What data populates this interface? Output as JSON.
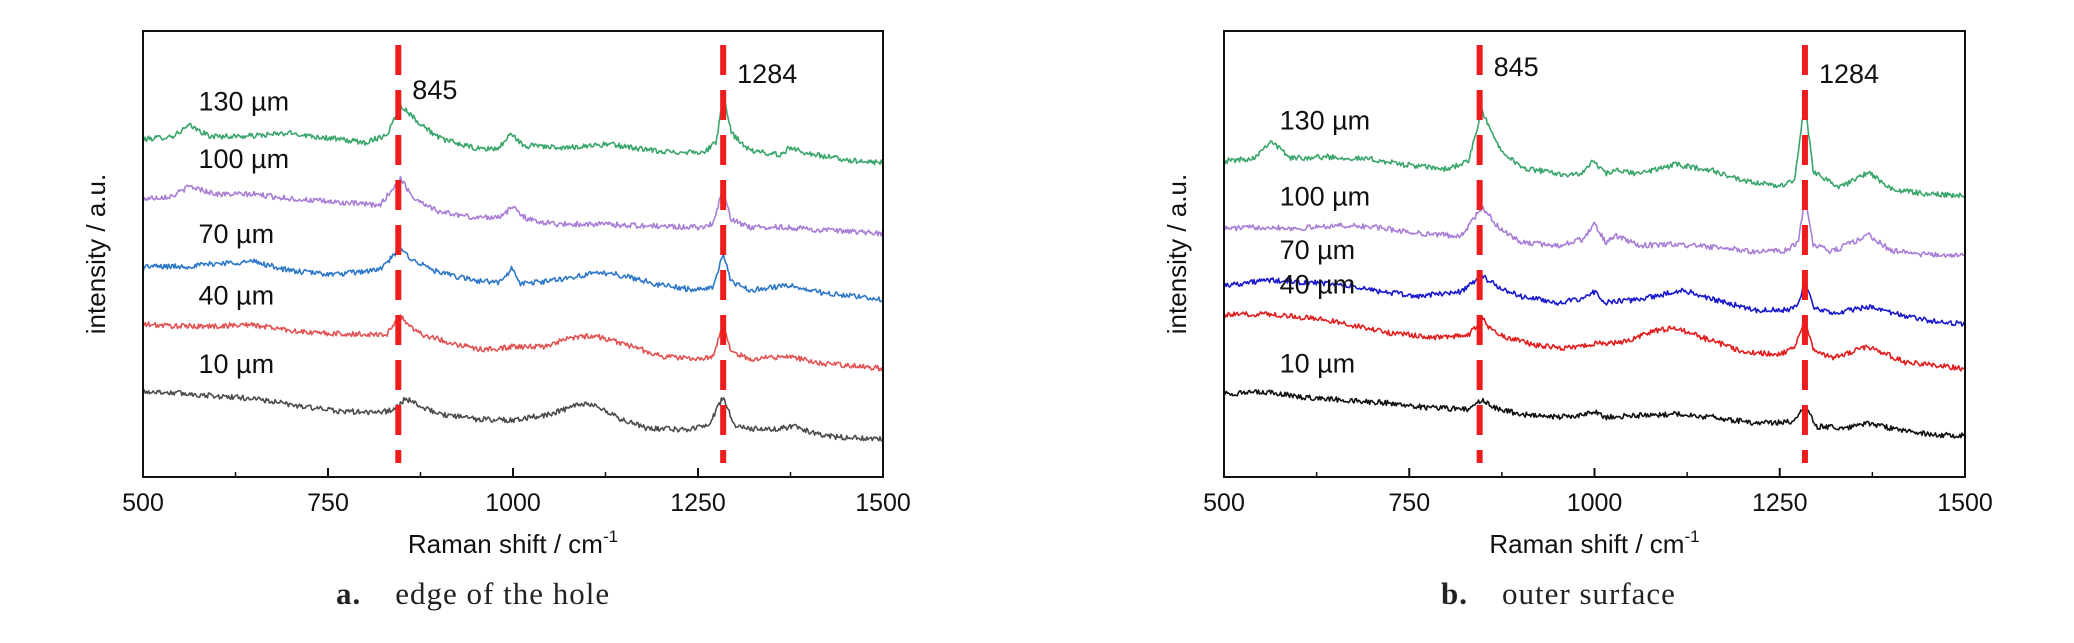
{
  "chart_data": [
    {
      "type": "line",
      "panel_label": "a.",
      "caption": "edge of the hole",
      "xlabel": "Raman shift / cm",
      "xlabel_sup": "-1",
      "ylabel": "intensity / a.u.",
      "xlim": [
        500,
        1500
      ],
      "xticks": [
        500,
        750,
        1000,
        1250,
        1500
      ],
      "xtick_labels": [
        "500",
        "750",
        "1000",
        "1250",
        "1500"
      ],
      "ylim": [
        0,
        1
      ],
      "yticks_shown": false,
      "reference_lines": [
        {
          "x": 845,
          "label": "845",
          "color": "#ee1c1c"
        },
        {
          "x": 1284,
          "label": "1284",
          "color": "#ee1c1c"
        }
      ],
      "series": [
        {
          "name": "130 µm",
          "color": "#3aa66b",
          "x": [
            500,
            540,
            563,
            590,
            640,
            700,
            730,
            800,
            830,
            848,
            870,
            900,
            950,
            980,
            998,
            1015,
            1030,
            1060,
            1100,
            1130,
            1160,
            1200,
            1230,
            1260,
            1275,
            1284,
            1295,
            1320,
            1360,
            1375,
            1400,
            1450,
            1500
          ],
          "y": [
            0.757,
            0.764,
            0.788,
            0.764,
            0.764,
            0.771,
            0.764,
            0.75,
            0.768,
            0.835,
            0.799,
            0.76,
            0.736,
            0.736,
            0.771,
            0.739,
            0.746,
            0.736,
            0.743,
            0.746,
            0.739,
            0.729,
            0.729,
            0.729,
            0.753,
            0.859,
            0.771,
            0.732,
            0.722,
            0.739,
            0.725,
            0.711,
            0.704
          ]
        },
        {
          "name": "100 µm",
          "color": "#a97fd6",
          "x": [
            500,
            540,
            563,
            600,
            650,
            700,
            760,
            820,
            848,
            865,
            900,
            950,
            985,
            1000,
            1020,
            1060,
            1120,
            1180,
            1250,
            1270,
            1284,
            1295,
            1320,
            1370,
            1420,
            1500
          ],
          "y": [
            0.624,
            0.63,
            0.652,
            0.634,
            0.634,
            0.624,
            0.616,
            0.609,
            0.669,
            0.627,
            0.595,
            0.581,
            0.585,
            0.606,
            0.577,
            0.567,
            0.567,
            0.563,
            0.56,
            0.567,
            0.648,
            0.577,
            0.56,
            0.56,
            0.553,
            0.546
          ]
        },
        {
          "name": "70 µm",
          "color": "#2e78c7",
          "x": [
            500,
            560,
            600,
            650,
            700,
            760,
            820,
            848,
            865,
            900,
            950,
            985,
            998,
            1010,
            1050,
            1100,
            1130,
            1160,
            1200,
            1250,
            1270,
            1284,
            1295,
            1320,
            1370,
            1420,
            1460,
            1500
          ],
          "y": [
            0.472,
            0.472,
            0.479,
            0.483,
            0.462,
            0.454,
            0.465,
            0.511,
            0.486,
            0.458,
            0.44,
            0.437,
            0.469,
            0.433,
            0.44,
            0.454,
            0.458,
            0.447,
            0.43,
            0.419,
            0.426,
            0.501,
            0.437,
            0.419,
            0.43,
            0.412,
            0.405,
            0.398
          ]
        },
        {
          "name": "40 µm",
          "color": "#e15353",
          "x": [
            500,
            550,
            600,
            640,
            680,
            720,
            780,
            830,
            848,
            860,
            880,
            920,
            960,
            1000,
            1040,
            1080,
            1110,
            1150,
            1200,
            1250,
            1270,
            1284,
            1295,
            1320,
            1370,
            1420,
            1460,
            1500
          ],
          "y": [
            0.342,
            0.338,
            0.338,
            0.342,
            0.334,
            0.324,
            0.32,
            0.32,
            0.363,
            0.338,
            0.318,
            0.299,
            0.285,
            0.292,
            0.292,
            0.313,
            0.317,
            0.299,
            0.271,
            0.264,
            0.271,
            0.338,
            0.281,
            0.264,
            0.271,
            0.253,
            0.25,
            0.243
          ]
        },
        {
          "name": "10 µm",
          "color": "#4d4d4d",
          "x": [
            500,
            550,
            600,
            650,
            700,
            760,
            820,
            840,
            855,
            870,
            900,
            950,
            1000,
            1050,
            1090,
            1110,
            1140,
            1180,
            1230,
            1265,
            1284,
            1300,
            1340,
            1380,
            1420,
            1460,
            1500
          ],
          "y": [
            0.192,
            0.188,
            0.181,
            0.176,
            0.162,
            0.148,
            0.144,
            0.152,
            0.176,
            0.162,
            0.141,
            0.13,
            0.127,
            0.141,
            0.162,
            0.162,
            0.134,
            0.109,
            0.106,
            0.116,
            0.18,
            0.113,
            0.106,
            0.113,
            0.092,
            0.088,
            0.085
          ]
        }
      ]
    },
    {
      "type": "line",
      "panel_label": "b.",
      "caption": "outer surface",
      "xlabel": "Raman shift / cm",
      "xlabel_sup": "-1",
      "ylabel": "intensity / a.u.",
      "xlim": [
        500,
        1500
      ],
      "xticks": [
        500,
        750,
        1000,
        1250,
        1500
      ],
      "xtick_labels": [
        "500",
        "750",
        "1000",
        "1250",
        "1500"
      ],
      "ylim": [
        0,
        1
      ],
      "yticks_shown": false,
      "reference_lines": [
        {
          "x": 845,
          "label": "845",
          "color": "#ee1c1c"
        },
        {
          "x": 1284,
          "label": "1284",
          "color": "#ee1c1c"
        }
      ],
      "series": [
        {
          "name": "130 µm",
          "color": "#3aa66b",
          "x": [
            500,
            540,
            563,
            590,
            640,
            700,
            740,
            800,
            830,
            848,
            870,
            900,
            950,
            980,
            998,
            1015,
            1030,
            1060,
            1110,
            1160,
            1200,
            1250,
            1270,
            1284,
            1295,
            1330,
            1370,
            1400,
            1450,
            1500
          ],
          "y": [
            0.708,
            0.715,
            0.754,
            0.715,
            0.718,
            0.712,
            0.701,
            0.69,
            0.708,
            0.82,
            0.743,
            0.694,
            0.68,
            0.677,
            0.708,
            0.68,
            0.687,
            0.68,
            0.701,
            0.687,
            0.663,
            0.652,
            0.666,
            0.842,
            0.687,
            0.649,
            0.683,
            0.645,
            0.635,
            0.631
          ]
        },
        {
          "name": "100 µm",
          "color": "#a97fd6",
          "x": [
            500,
            560,
            600,
            650,
            700,
            760,
            820,
            848,
            870,
            900,
            950,
            985,
            1000,
            1015,
            1030,
            1060,
            1110,
            1160,
            1220,
            1260,
            1275,
            1284,
            1295,
            1320,
            1370,
            1400,
            1450,
            1500
          ],
          "y": [
            0.557,
            0.561,
            0.557,
            0.564,
            0.561,
            0.547,
            0.54,
            0.604,
            0.561,
            0.526,
            0.519,
            0.533,
            0.568,
            0.526,
            0.54,
            0.519,
            0.522,
            0.515,
            0.505,
            0.508,
            0.529,
            0.624,
            0.522,
            0.505,
            0.543,
            0.508,
            0.498,
            0.498
          ]
        },
        {
          "name": "70 µm",
          "color": "#1a1acc",
          "x": [
            500,
            560,
            600,
            650,
            700,
            760,
            820,
            848,
            870,
            900,
            950,
            985,
            1000,
            1015,
            1060,
            1120,
            1160,
            1220,
            1260,
            1275,
            1284,
            1295,
            1320,
            1370,
            1420,
            1460,
            1500
          ],
          "y": [
            0.43,
            0.441,
            0.437,
            0.433,
            0.419,
            0.405,
            0.416,
            0.451,
            0.426,
            0.405,
            0.391,
            0.398,
            0.416,
            0.391,
            0.398,
            0.419,
            0.398,
            0.374,
            0.374,
            0.384,
            0.444,
            0.381,
            0.367,
            0.381,
            0.36,
            0.349,
            0.342
          ]
        },
        {
          "name": "40 µm",
          "color": "#e01e1e",
          "x": [
            500,
            560,
            600,
            640,
            680,
            720,
            780,
            830,
            848,
            860,
            880,
            920,
            960,
            1000,
            1040,
            1080,
            1110,
            1150,
            1200,
            1250,
            1270,
            1284,
            1295,
            1320,
            1370,
            1420,
            1460,
            1500
          ],
          "y": [
            0.363,
            0.366,
            0.359,
            0.352,
            0.338,
            0.324,
            0.313,
            0.317,
            0.356,
            0.331,
            0.313,
            0.296,
            0.289,
            0.299,
            0.303,
            0.328,
            0.335,
            0.31,
            0.282,
            0.275,
            0.289,
            0.352,
            0.285,
            0.268,
            0.292,
            0.257,
            0.25,
            0.243
          ]
        },
        {
          "name": "10 µm",
          "color": "#111111",
          "x": [
            500,
            560,
            600,
            660,
            720,
            780,
            830,
            848,
            865,
            900,
            950,
            985,
            1000,
            1015,
            1060,
            1110,
            1160,
            1220,
            1265,
            1284,
            1300,
            1340,
            1370,
            1420,
            1460,
            1500
          ],
          "y": [
            0.187,
            0.19,
            0.18,
            0.173,
            0.166,
            0.155,
            0.152,
            0.173,
            0.155,
            0.141,
            0.134,
            0.138,
            0.148,
            0.134,
            0.138,
            0.141,
            0.134,
            0.12,
            0.124,
            0.155,
            0.113,
            0.11,
            0.12,
            0.102,
            0.095,
            0.092
          ]
        }
      ]
    }
  ]
}
